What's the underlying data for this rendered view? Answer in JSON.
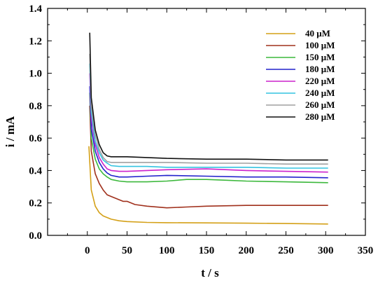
{
  "chart_data": {
    "type": "line",
    "xlabel": "t / s",
    "ylabel": "i / mA",
    "xlim": [
      -50,
      350
    ],
    "ylim": [
      0,
      1.4
    ],
    "xticks": [
      0,
      50,
      100,
      150,
      200,
      250,
      300,
      350
    ],
    "yticks": [
      0.0,
      0.2,
      0.4,
      0.6,
      0.8,
      1.0,
      1.2,
      1.4
    ],
    "xtick_labels": [
      "0",
      "50",
      "100",
      "150",
      "200",
      "250",
      "300",
      "350"
    ],
    "ytick_labels": [
      "0.0",
      "0.2",
      "0.4",
      "0.6",
      "0.8",
      "1.0",
      "1.2",
      "1.4"
    ],
    "grid": false,
    "legend_position": "top-right",
    "series": [
      {
        "name": "40 μM",
        "color": "#d4a017",
        "x": [
          2,
          5,
          10,
          15,
          20,
          30,
          40,
          50,
          75,
          100,
          150,
          200,
          250,
          303
        ],
        "y": [
          0.55,
          0.28,
          0.18,
          0.14,
          0.12,
          0.1,
          0.09,
          0.085,
          0.08,
          0.078,
          0.077,
          0.075,
          0.073,
          0.07
        ]
      },
      {
        "name": "100 μM",
        "color": "#a0301c",
        "x": [
          3,
          5,
          10,
          15,
          20,
          25,
          30,
          40,
          45,
          50,
          60,
          75,
          100,
          125,
          150,
          200,
          250,
          303
        ],
        "y": [
          0.8,
          0.52,
          0.38,
          0.32,
          0.28,
          0.25,
          0.24,
          0.22,
          0.21,
          0.21,
          0.19,
          0.18,
          0.17,
          0.175,
          0.18,
          0.185,
          0.185,
          0.185
        ]
      },
      {
        "name": "150 μM",
        "color": "#3cb83c",
        "x": [
          3,
          5,
          10,
          15,
          20,
          25,
          30,
          40,
          50,
          75,
          100,
          125,
          150,
          175,
          200,
          250,
          303
        ],
        "y": [
          0.88,
          0.6,
          0.47,
          0.41,
          0.38,
          0.36,
          0.345,
          0.335,
          0.33,
          0.33,
          0.335,
          0.345,
          0.345,
          0.34,
          0.335,
          0.33,
          0.325
        ]
      },
      {
        "name": "180 μM",
        "color": "#2222cc",
        "x": [
          3,
          5,
          10,
          15,
          20,
          25,
          30,
          40,
          50,
          75,
          100,
          150,
          200,
          250,
          303
        ],
        "y": [
          0.92,
          0.66,
          0.52,
          0.45,
          0.41,
          0.385,
          0.37,
          0.36,
          0.36,
          0.365,
          0.37,
          0.365,
          0.36,
          0.36,
          0.355
        ]
      },
      {
        "name": "220 μM",
        "color": "#cc22cc",
        "x": [
          3,
          5,
          10,
          15,
          20,
          25,
          30,
          40,
          50,
          75,
          100,
          150,
          200,
          250,
          303
        ],
        "y": [
          1.0,
          0.72,
          0.56,
          0.48,
          0.44,
          0.41,
          0.4,
          0.395,
          0.395,
          0.4,
          0.405,
          0.41,
          0.4,
          0.395,
          0.39
        ]
      },
      {
        "name": "240 μM",
        "color": "#33c3e0",
        "x": [
          3,
          5,
          10,
          15,
          20,
          25,
          30,
          40,
          50,
          75,
          100,
          150,
          200,
          250,
          303
        ],
        "y": [
          1.06,
          0.76,
          0.58,
          0.51,
          0.465,
          0.445,
          0.43,
          0.425,
          0.425,
          0.425,
          0.42,
          0.42,
          0.42,
          0.415,
          0.415
        ]
      },
      {
        "name": "260 μM",
        "color": "#a0a0a0",
        "x": [
          3,
          5,
          10,
          15,
          20,
          25,
          30,
          40,
          50,
          75,
          100,
          150,
          200,
          250,
          303
        ],
        "y": [
          1.12,
          0.8,
          0.62,
          0.53,
          0.48,
          0.455,
          0.45,
          0.45,
          0.45,
          0.45,
          0.45,
          0.445,
          0.445,
          0.44,
          0.44
        ]
      },
      {
        "name": "280 μM",
        "color": "#111111",
        "x": [
          3,
          5,
          10,
          15,
          20,
          25,
          30,
          40,
          50,
          75,
          100,
          150,
          200,
          250,
          303
        ],
        "y": [
          1.25,
          0.85,
          0.65,
          0.56,
          0.51,
          0.49,
          0.485,
          0.485,
          0.485,
          0.48,
          0.475,
          0.47,
          0.47,
          0.465,
          0.465
        ]
      }
    ]
  }
}
